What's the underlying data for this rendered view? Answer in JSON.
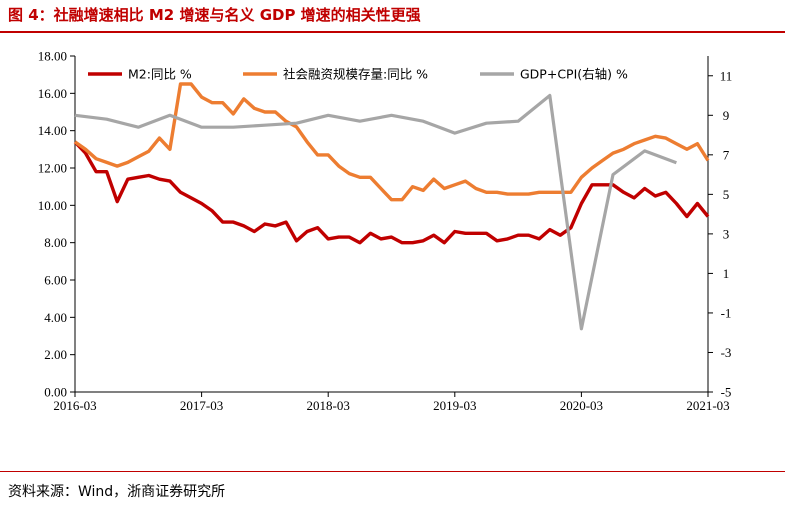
{
  "figure_title": "图 4：社融增速相比 M2 增速与名义 GDP 增速的相关性更强",
  "source_note": "资料来源：Wind，浙商证券研究所",
  "chart_data": {
    "type": "line",
    "title": "社融增速相比 M2 增速与名义 GDP 增速的相关性更强",
    "x_labels": [
      "2016-03",
      "2017-03",
      "2018-03",
      "2019-03",
      "2020-03",
      "2021-03"
    ],
    "x_range": [
      0,
      60
    ],
    "y_left": {
      "min": 0,
      "max": 18,
      "ticks": [
        "0.00",
        "2.00",
        "4.00",
        "6.00",
        "8.00",
        "10.00",
        "12.00",
        "14.00",
        "16.00",
        "18.00"
      ]
    },
    "y_right": {
      "min": -5,
      "max": 12,
      "ticks": [
        "-5",
        "-3",
        "-1",
        "1",
        "3",
        "5",
        "7",
        "9",
        "11"
      ]
    },
    "series": [
      {
        "name": "M2:同比 %",
        "axis": "left",
        "color": "#c00000",
        "x": [
          0,
          1,
          2,
          3,
          4,
          5,
          6,
          7,
          8,
          9,
          10,
          11,
          12,
          13,
          14,
          15,
          16,
          17,
          18,
          19,
          20,
          21,
          22,
          23,
          24,
          25,
          26,
          27,
          28,
          29,
          30,
          31,
          32,
          33,
          34,
          35,
          36,
          37,
          38,
          39,
          40,
          41,
          42,
          43,
          44,
          45,
          46,
          47,
          48,
          49,
          50,
          51,
          52,
          53,
          54,
          55,
          56,
          57,
          58,
          59,
          60
        ],
        "values": [
          13.4,
          12.8,
          11.8,
          11.8,
          10.2,
          11.4,
          11.5,
          11.6,
          11.4,
          11.3,
          10.7,
          10.4,
          10.1,
          9.7,
          9.1,
          9.1,
          8.9,
          8.6,
          9.0,
          8.9,
          9.1,
          8.1,
          8.6,
          8.8,
          8.2,
          8.3,
          8.3,
          8.0,
          8.5,
          8.2,
          8.3,
          8.0,
          8.0,
          8.1,
          8.4,
          8.0,
          8.6,
          8.5,
          8.5,
          8.5,
          8.1,
          8.2,
          8.4,
          8.4,
          8.2,
          8.7,
          8.4,
          8.8,
          10.1,
          11.1,
          11.1,
          11.1,
          10.7,
          10.4,
          10.9,
          10.5,
          10.7,
          10.1,
          9.4,
          10.1,
          9.4
        ]
      },
      {
        "name": "社会融资规模存量:同比 %",
        "axis": "left",
        "color": "#ed7d31",
        "x": [
          0,
          1,
          2,
          3,
          4,
          5,
          6,
          7,
          8,
          9,
          10,
          11,
          12,
          13,
          14,
          15,
          16,
          17,
          18,
          19,
          20,
          21,
          22,
          23,
          24,
          25,
          26,
          27,
          28,
          29,
          30,
          31,
          32,
          33,
          34,
          35,
          36,
          37,
          38,
          39,
          40,
          41,
          42,
          43,
          44,
          45,
          46,
          47,
          48,
          49,
          50,
          51,
          52,
          53,
          54,
          55,
          56,
          57,
          58,
          59,
          60
        ],
        "values": [
          13.4,
          13.0,
          12.5,
          12.3,
          12.1,
          12.3,
          12.6,
          12.9,
          13.6,
          13.0,
          16.5,
          16.5,
          15.8,
          15.5,
          15.5,
          14.9,
          15.7,
          15.2,
          15.0,
          15.0,
          14.5,
          14.2,
          13.4,
          12.7,
          12.7,
          12.1,
          11.7,
          11.5,
          11.5,
          10.9,
          10.3,
          10.3,
          11.0,
          10.8,
          11.4,
          10.9,
          11.1,
          11.3,
          10.9,
          10.7,
          10.7,
          10.6,
          10.6,
          10.6,
          10.7,
          10.7,
          10.7,
          10.7,
          11.5,
          12.0,
          12.4,
          12.8,
          13.0,
          13.3,
          13.5,
          13.7,
          13.6,
          13.3,
          13.0,
          13.3,
          12.4
        ]
      },
      {
        "name": "GDP+CPI(右轴) %",
        "axis": "right",
        "color": "#a6a6a6",
        "x": [
          0,
          3,
          6,
          9,
          12,
          15,
          18,
          21,
          24,
          27,
          30,
          33,
          36,
          39,
          42,
          45,
          48,
          51,
          54,
          57
        ],
        "values": [
          9.0,
          8.8,
          8.4,
          9.0,
          8.4,
          8.4,
          8.5,
          8.6,
          9.0,
          8.7,
          9.0,
          8.7,
          8.1,
          8.6,
          8.7,
          10.0,
          -1.8,
          6.0,
          7.2,
          6.6
        ]
      }
    ],
    "grid": false,
    "legend_position": "top"
  }
}
